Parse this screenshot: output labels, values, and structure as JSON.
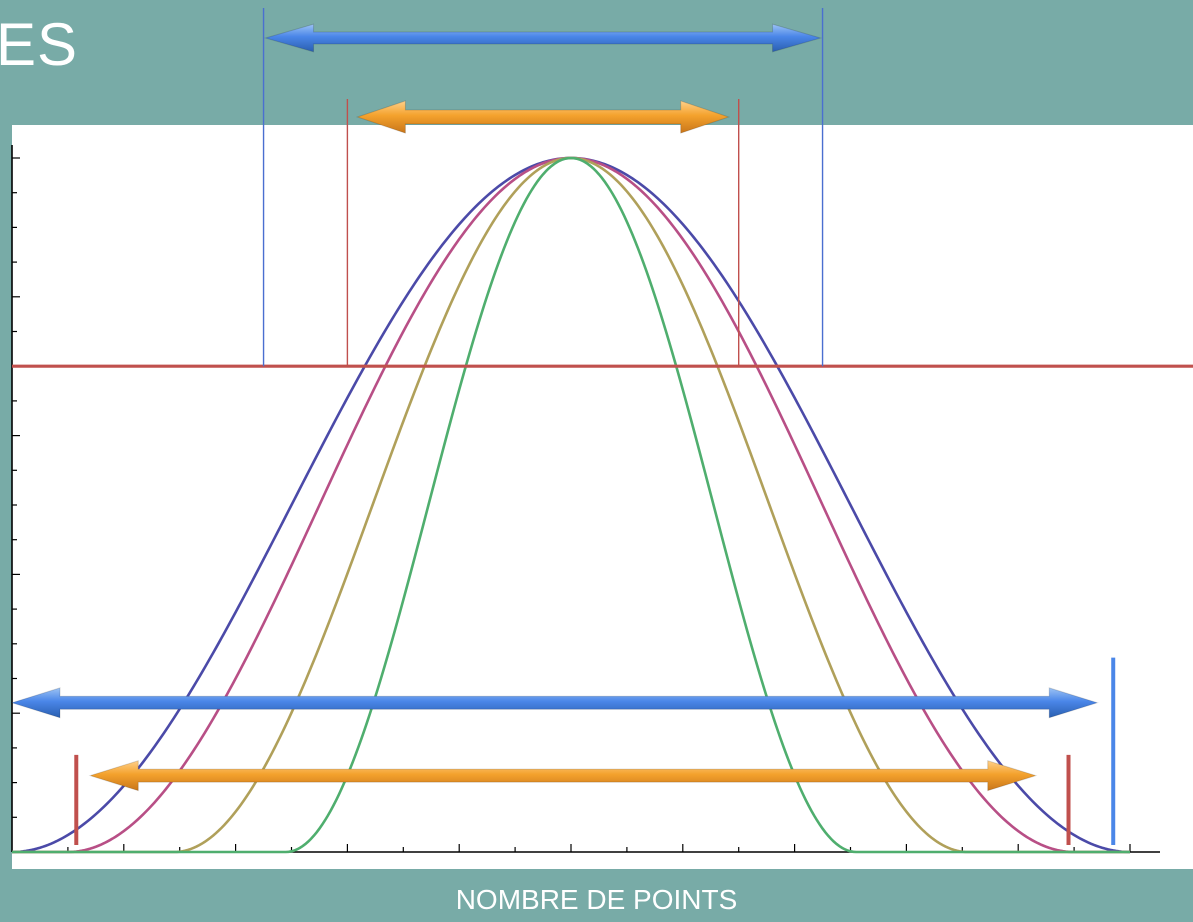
{
  "slide": {
    "title_fragment": "ES"
  },
  "chart_data": {
    "type": "line",
    "title": "",
    "xlabel": "NOMBRE DE POINTS",
    "ylabel": "",
    "xlim": [
      0,
      20
    ],
    "ylim": [
      0,
      1
    ],
    "x_ticks": [
      1,
      2,
      3,
      4,
      5,
      6,
      7,
      8,
      9,
      10,
      11,
      12,
      13,
      14,
      15,
      16,
      17,
      18,
      19,
      20
    ],
    "y_ticks": [
      0.05,
      0.1,
      0.15,
      0.2,
      0.25,
      0.3,
      0.35,
      0.4,
      0.45,
      0.5,
      0.55,
      0.6,
      0.65,
      0.7,
      0.75,
      0.8,
      0.85,
      0.9,
      0.95,
      1.0
    ],
    "tick_labels_shown": false,
    "grid": false,
    "legend": "none",
    "series": [
      {
        "color": "#4b4aa8",
        "center": 10,
        "half_width": 10,
        "power": 2
      },
      {
        "color": "#b84f86",
        "center": 10,
        "half_width": 9,
        "power": 2
      },
      {
        "color": "#b0a05a",
        "center": 10,
        "half_width": 7.1,
        "power": 2
      },
      {
        "color": "#4fae6e",
        "center": 10,
        "half_width": 5.1,
        "power": 2
      }
    ],
    "threshold_line": {
      "y": 0.7,
      "color": "#c0504d"
    },
    "width_markers": [
      {
        "color": "#4a86e8",
        "x_start": 4.5,
        "x_end": 14.5,
        "y": 0.7,
        "arrow_level": "above-plot-high",
        "type": "half-height-width"
      },
      {
        "color": "#f4a22d",
        "x_start": 6.0,
        "x_end": 13.0,
        "y": 0.7,
        "arrow_level": "above-plot-low",
        "type": "half-height-width"
      },
      {
        "color": "#4a86e8",
        "x_start": 0.0,
        "x_end": 19.7,
        "y": 0.215,
        "type": "base-width"
      },
      {
        "color": "#f4a22d",
        "x_start": 1.4,
        "x_end": 18.6,
        "y": 0.11,
        "type": "base-width"
      }
    ],
    "end_bars": [
      {
        "color": "#c0504d",
        "x": 1.15,
        "y_from": 0.01,
        "y_to": 0.14
      },
      {
        "color": "#c0504d",
        "x": 18.9,
        "y_from": 0.01,
        "y_to": 0.14
      },
      {
        "color": "#4a86e8",
        "x": 19.7,
        "y_from": 0.01,
        "y_to": 0.28
      }
    ]
  }
}
